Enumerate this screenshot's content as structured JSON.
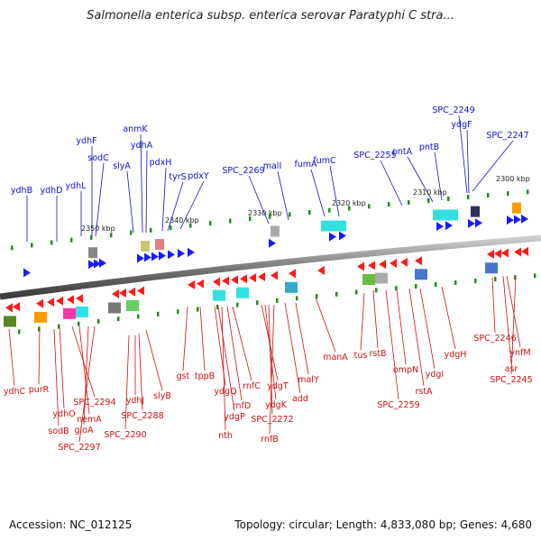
{
  "title": "Salmonella enterica subsp. enterica serovar Paratyphi C stra...",
  "footer": {
    "accession": "Accession: NC_012125",
    "info": "Topology: circular; Length: 4,833,080 bp; Genes: 4,680"
  },
  "scale_labels": [
    "2350 kbp",
    "2340 kbp",
    "2330 kbp",
    "2320 kbp",
    "2310 kbp",
    "2300 kbp"
  ],
  "top_genes": [
    "ydhB",
    "ydhD",
    "ydhL",
    "ydhF",
    "sodC",
    "slyA",
    "anmK",
    "ydhA",
    "pdxH",
    "tyrS",
    "pdxY",
    "SPC_2269",
    "malI",
    "fumA",
    "fumC",
    "SPC_2255",
    "pntA",
    "pntB",
    "SPC_2249",
    "ydgF",
    "SPC_2247"
  ],
  "bottom_genes": [
    "ydhC",
    "purR",
    "ydhO",
    "sodB",
    "SPC_2294",
    "nemA",
    "gloA",
    "SPC_2297",
    "ydhJ",
    "SPC_2288",
    "SPC_2290",
    "slyB",
    "gst",
    "tppB",
    "ydgQ",
    "ydgP",
    "nth",
    "rnfD",
    "rnfC",
    "ydgT",
    "ydgK",
    "SPC_2272",
    "rnfB",
    "add",
    "malY",
    "manA",
    "tus",
    "rstB",
    "SPC_2259",
    "ompN",
    "rstA",
    "ydgI",
    "ydgH",
    "SPC_2246",
    "ynfM",
    "asr",
    "SPC_2245"
  ],
  "colors": {
    "forward": "#1a1aff",
    "reverse": "#ff1a1a",
    "backbone": "#888888",
    "label_blue": "#1010d0",
    "label_red": "#d01010"
  }
}
